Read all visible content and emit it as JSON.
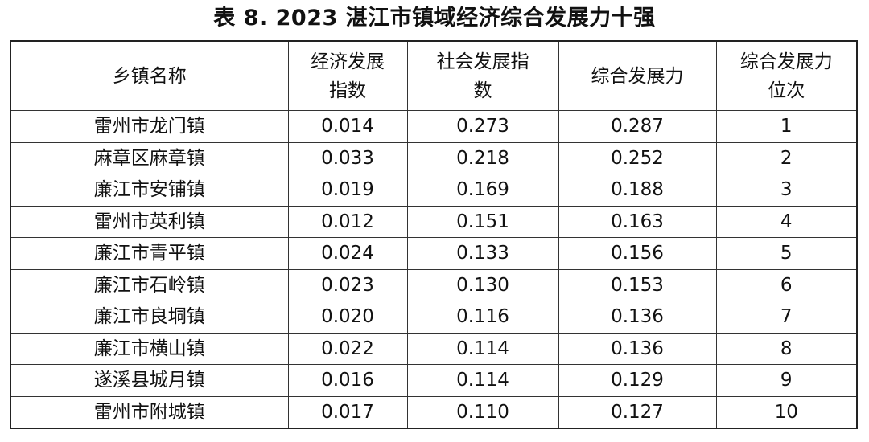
{
  "title": "表 8.  2023 湛江市镇域经济综合发展力十强",
  "table": {
    "headers": {
      "town": "乡镇名称",
      "econ_line1": "经济发展",
      "econ_line2": "指数",
      "social_line1": "社会发展指",
      "social_line2": "数",
      "composite": "综合发展力",
      "rank_line1": "综合发展力",
      "rank_line2": "位次"
    },
    "rows": [
      {
        "town": "雷州市龙门镇",
        "econ": "0.014",
        "social": "0.273",
        "composite": "0.287",
        "rank": "1"
      },
      {
        "town": "麻章区麻章镇",
        "econ": "0.033",
        "social": "0.218",
        "composite": "0.252",
        "rank": "2"
      },
      {
        "town": "廉江市安铺镇",
        "econ": "0.019",
        "social": "0.169",
        "composite": "0.188",
        "rank": "3"
      },
      {
        "town": "雷州市英利镇",
        "econ": "0.012",
        "social": "0.151",
        "composite": "0.163",
        "rank": "4"
      },
      {
        "town": "廉江市青平镇",
        "econ": "0.024",
        "social": "0.133",
        "composite": "0.156",
        "rank": "5"
      },
      {
        "town": "廉江市石岭镇",
        "econ": "0.023",
        "social": "0.130",
        "composite": "0.153",
        "rank": "6"
      },
      {
        "town": "廉江市良垌镇",
        "econ": "0.020",
        "social": "0.116",
        "composite": "0.136",
        "rank": "7"
      },
      {
        "town": "廉江市横山镇",
        "econ": "0.022",
        "social": "0.114",
        "composite": "0.136",
        "rank": "8"
      },
      {
        "town": "遂溪县城月镇",
        "econ": "0.016",
        "social": "0.114",
        "composite": "0.129",
        "rank": "9"
      },
      {
        "town": "雷州市附城镇",
        "econ": "0.017",
        "social": "0.110",
        "composite": "0.127",
        "rank": "10"
      }
    ]
  }
}
